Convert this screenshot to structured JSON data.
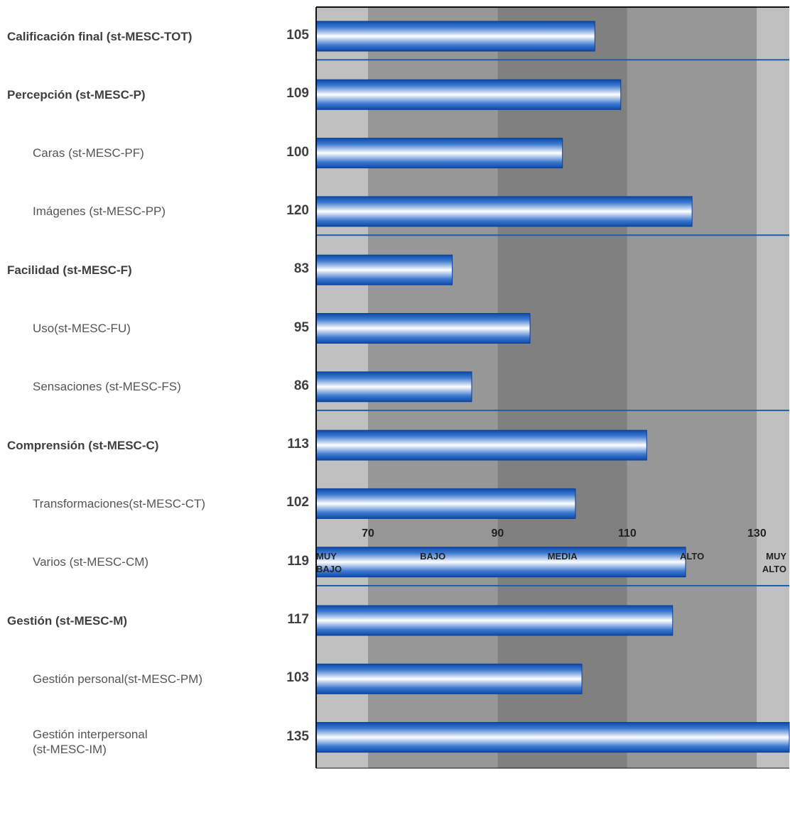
{
  "chart_data": {
    "type": "bar",
    "orientation": "horizontal",
    "xlim": [
      62,
      135
    ],
    "ticks": [
      "70",
      "90",
      "110",
      "130"
    ],
    "tick_values": [
      70,
      90,
      110,
      130
    ],
    "bands": [
      {
        "from": 62,
        "to": 70,
        "color": "#c0c0c0"
      },
      {
        "from": 70,
        "to": 90,
        "color": "#979797"
      },
      {
        "from": 90,
        "to": 110,
        "color": "#808080"
      },
      {
        "from": 110,
        "to": 130,
        "color": "#979797"
      },
      {
        "from": 130,
        "to": 135,
        "color": "#c0c0c0"
      }
    ],
    "range_categories": [
      {
        "label": "MUY\nBAJO",
        "align": "left"
      },
      {
        "label": "BAJO",
        "align": "center",
        "at": 80
      },
      {
        "label": "MEDIA",
        "align": "center",
        "at": 100
      },
      {
        "label": "ALTO",
        "align": "center",
        "at": 120
      },
      {
        "label": "MUY\nALTO",
        "align": "right"
      }
    ],
    "bars": [
      {
        "label": "Calificación final (st-MESC-TOT)",
        "value": 105,
        "value_label": "105",
        "level": "main",
        "divider_after": true
      },
      {
        "label": "Percepción (st-MESC-P)",
        "value": 109,
        "value_label": "109",
        "level": "main"
      },
      {
        "label": "Caras (st-MESC-PF)",
        "value": 100,
        "value_label": "100",
        "level": "sub"
      },
      {
        "label": "Imágenes (st-MESC-PP)",
        "value": 120,
        "value_label": "120",
        "level": "sub",
        "divider_after": true
      },
      {
        "label": "Facilidad (st-MESC-F)",
        "value": 83,
        "value_label": "83",
        "level": "main"
      },
      {
        "label": "Uso(st-MESC-FU)",
        "value": 95,
        "value_label": "95",
        "level": "sub"
      },
      {
        "label": "Sensaciones (st-MESC-FS)",
        "value": 86,
        "value_label": "86",
        "level": "sub",
        "divider_after": true
      },
      {
        "label": "Comprensión (st-MESC-C)",
        "value": 113,
        "value_label": "113",
        "level": "main"
      },
      {
        "label": "Transformaciones(st-MESC-CT)",
        "value": 102,
        "value_label": "102",
        "level": "sub"
      },
      {
        "label": "Varios (st-MESC-CM)",
        "value": 119,
        "value_label": "119",
        "level": "sub",
        "divider_after": true
      },
      {
        "label": "Gestión (st-MESC-M)",
        "value": 117,
        "value_label": "117",
        "level": "main"
      },
      {
        "label": "Gestión personal(st-MESC-PM)",
        "value": 103,
        "value_label": "103",
        "level": "sub"
      },
      {
        "label": "Gestión interpersonal\n(st-MESC-IM)",
        "value": 135,
        "value_label": "135",
        "level": "sub"
      }
    ],
    "bar_color": "#1f5fbf",
    "divider_color": "#1f5fa8"
  }
}
